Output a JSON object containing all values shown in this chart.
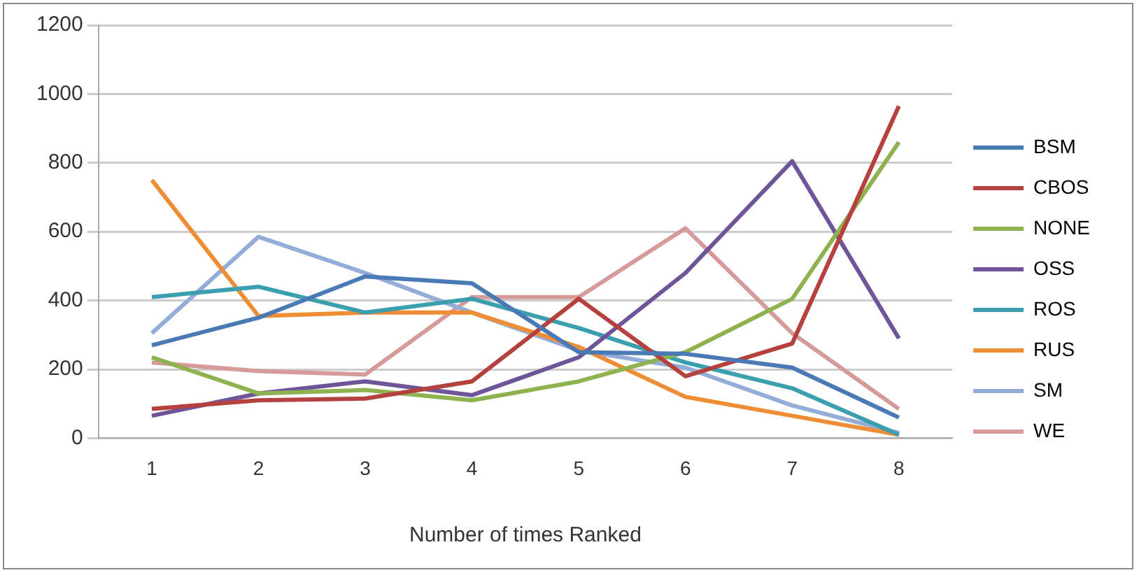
{
  "chart_data": {
    "type": "line",
    "xlabel": "Number of times Ranked",
    "categories": [
      "1",
      "2",
      "3",
      "4",
      "5",
      "6",
      "7",
      "8"
    ],
    "series": [
      {
        "name": "BSM",
        "color": "#4a7ab5",
        "values": [
          270,
          350,
          470,
          450,
          250,
          245,
          205,
          60
        ]
      },
      {
        "name": "CBOS",
        "color": "#b5413e",
        "values": [
          85,
          110,
          115,
          165,
          405,
          180,
          275,
          965
        ]
      },
      {
        "name": "NONE",
        "color": "#8db24f",
        "values": [
          235,
          130,
          140,
          110,
          165,
          250,
          405,
          860
        ]
      },
      {
        "name": "OSS",
        "color": "#6e5599",
        "values": [
          65,
          130,
          165,
          125,
          235,
          480,
          805,
          290
        ]
      },
      {
        "name": "ROS",
        "color": "#3c9fb0",
        "values": [
          410,
          440,
          365,
          405,
          320,
          220,
          145,
          10
        ]
      },
      {
        "name": "RUS",
        "color": "#ef8d34",
        "values": [
          750,
          355,
          365,
          365,
          265,
          120,
          65,
          10
        ]
      },
      {
        "name": "SM",
        "color": "#93acd8",
        "values": [
          305,
          585,
          480,
          365,
          255,
          205,
          95,
          15
        ]
      },
      {
        "name": "WE",
        "color": "#d69a9b",
        "values": [
          220,
          195,
          185,
          410,
          410,
          610,
          305,
          85
        ]
      }
    ],
    "ylim": [
      0,
      1200
    ],
    "yticks": [
      0,
      200,
      400,
      600,
      800,
      1000,
      1200
    ],
    "grid": "y",
    "legend": "right",
    "marker": "none",
    "line_style": "solid"
  }
}
